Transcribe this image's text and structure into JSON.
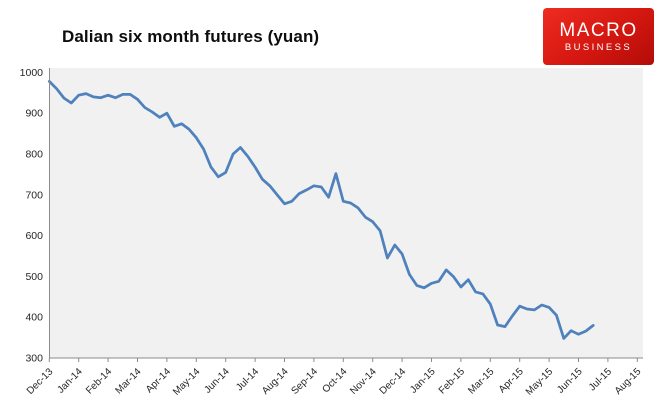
{
  "title": "Dalian six month futures (yuan)",
  "logo": {
    "line1": "MACRO",
    "line2": "BUSINESS",
    "bg_color": "#d41710",
    "text_color": "#ffffff"
  },
  "chart_data": {
    "type": "line",
    "title": "Dalian six month futures (yuan)",
    "unit": "yuan",
    "x_tick_labels": [
      "Dec-13",
      "Jan-14",
      "Feb-14",
      "Mar-14",
      "Apr-14",
      "May-14",
      "Jun-14",
      "Jul-14",
      "Aug-14",
      "Sep-14",
      "Oct-14",
      "Nov-14",
      "Dec-14",
      "Jan-15",
      "Feb-15",
      "Mar-15",
      "Apr-15",
      "May-15",
      "Jun-15",
      "Jul-15",
      "Aug-15"
    ],
    "y_ticks": [
      1000,
      900,
      800,
      700,
      600,
      500,
      400,
      300
    ],
    "ylim": [
      300,
      1000
    ],
    "xlim_months": [
      0,
      20
    ],
    "grid": "off",
    "legend": "none",
    "plot_bg": "#f1f1f1",
    "axis_color": "#8c8c8c",
    "label_color": "#262626",
    "series": [
      {
        "name": "Dalian six month futures",
        "color": "#4f81bd",
        "x_start_month": 0,
        "x_step_months": 0.25,
        "values": [
          978,
          960,
          937,
          925,
          944,
          948,
          940,
          938,
          944,
          938,
          946,
          946,
          934,
          914,
          903,
          890,
          900,
          868,
          874,
          861,
          840,
          812,
          768,
          744,
          755,
          800,
          816,
          794,
          768,
          738,
          722,
          700,
          678,
          684,
          703,
          712,
          722,
          719,
          694,
          752,
          684,
          680,
          668,
          645,
          634,
          612,
          545,
          577,
          555,
          505,
          478,
          472,
          483,
          488,
          516,
          499,
          474,
          492,
          462,
          457,
          432,
          381,
          377,
          403,
          427,
          420,
          418,
          430,
          424,
          405,
          348,
          367,
          358,
          366,
          380
        ]
      }
    ]
  }
}
